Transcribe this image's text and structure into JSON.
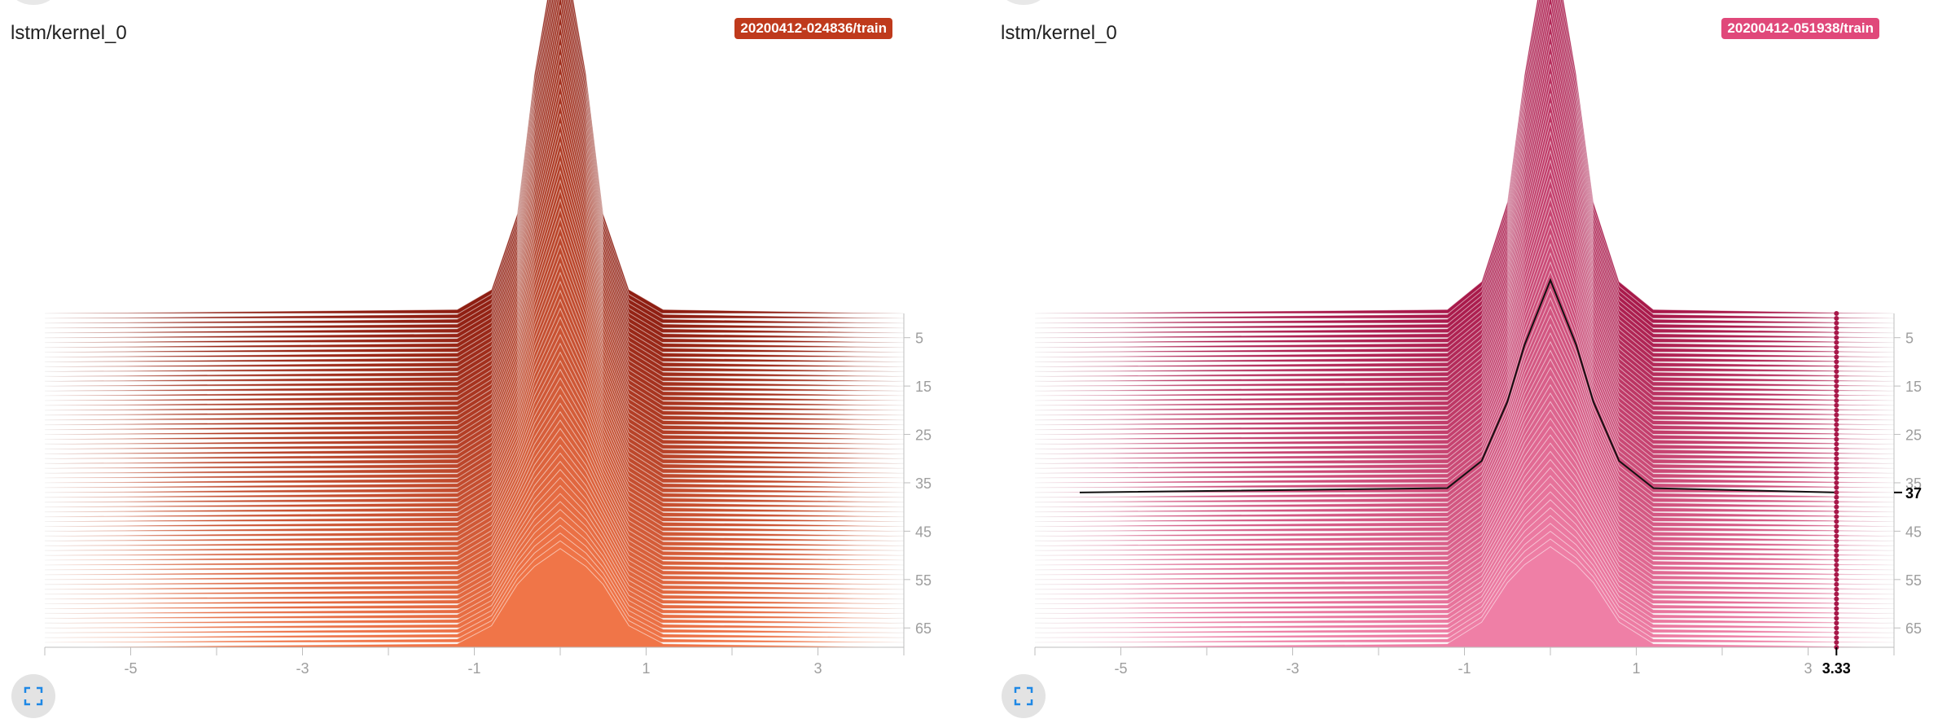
{
  "panels": [
    {
      "title": "lstm/kernel_0",
      "run": "20200412-024836/train",
      "badge_color": "#bf3a1c",
      "base_color": "#f07548",
      "dark_color": "#8e1e12",
      "x_ticks": [
        "-5",
        "-3",
        "-1",
        "1",
        "3"
      ],
      "step_ticks": [
        "5",
        "15",
        "25",
        "35",
        "45",
        "55",
        "65"
      ]
    },
    {
      "title": "lstm/kernel_0",
      "run": "20200412-051938/train",
      "badge_color": "#e0487a",
      "base_color": "#ef7fa6",
      "dark_color": "#a8194a",
      "x_ticks": [
        "-5",
        "-3",
        "-1",
        "1",
        "3"
      ],
      "step_ticks": [
        "5",
        "15",
        "25",
        "35",
        "45",
        "55",
        "65"
      ],
      "hover": {
        "step": "37",
        "x": "3.33"
      }
    }
  ],
  "chart_data": [
    {
      "type": "area",
      "title": "lstm/kernel_0",
      "series_run": "20200412-024836/train",
      "x_range": [
        -6,
        4
      ],
      "x_ticks": [
        -5,
        -3,
        -1,
        1,
        3
      ],
      "step_range": [
        0,
        69
      ],
      "step_ticks": [
        5,
        15,
        25,
        35,
        45,
        55,
        65
      ],
      "offset_histogram": true,
      "bins_x": [
        -6,
        -1.2,
        -0.8,
        -0.5,
        -0.3,
        0,
        0.3,
        0.5,
        0.8,
        1.2,
        4
      ],
      "step0_profile": [
        0,
        0.01,
        0.06,
        0.25,
        0.6,
        0.98,
        0.6,
        0.25,
        0.06,
        0.01,
        0
      ],
      "step69_profile": [
        0,
        0.02,
        0.12,
        0.35,
        0.45,
        0.55,
        0.45,
        0.35,
        0.12,
        0.02,
        0
      ]
    },
    {
      "type": "area",
      "title": "lstm/kernel_0",
      "series_run": "20200412-051938/train",
      "x_range": [
        -6,
        4
      ],
      "x_ticks": [
        -5,
        -3,
        -1,
        1,
        3
      ],
      "step_range": [
        0,
        69
      ],
      "step_ticks": [
        5,
        15,
        25,
        35,
        45,
        55,
        65
      ],
      "offset_histogram": true,
      "bins_x": [
        -6,
        -1.2,
        -0.8,
        -0.5,
        -0.3,
        0,
        0.3,
        0.5,
        0.8,
        1.2,
        4
      ],
      "step0_profile": [
        0,
        0.01,
        0.08,
        0.28,
        0.6,
        0.98,
        0.6,
        0.28,
        0.08,
        0.01,
        0
      ],
      "step69_profile": [
        0,
        0.02,
        0.14,
        0.36,
        0.46,
        0.56,
        0.46,
        0.36,
        0.14,
        0.02,
        0
      ],
      "hover_step": 37,
      "hover_x": 3.33
    }
  ]
}
